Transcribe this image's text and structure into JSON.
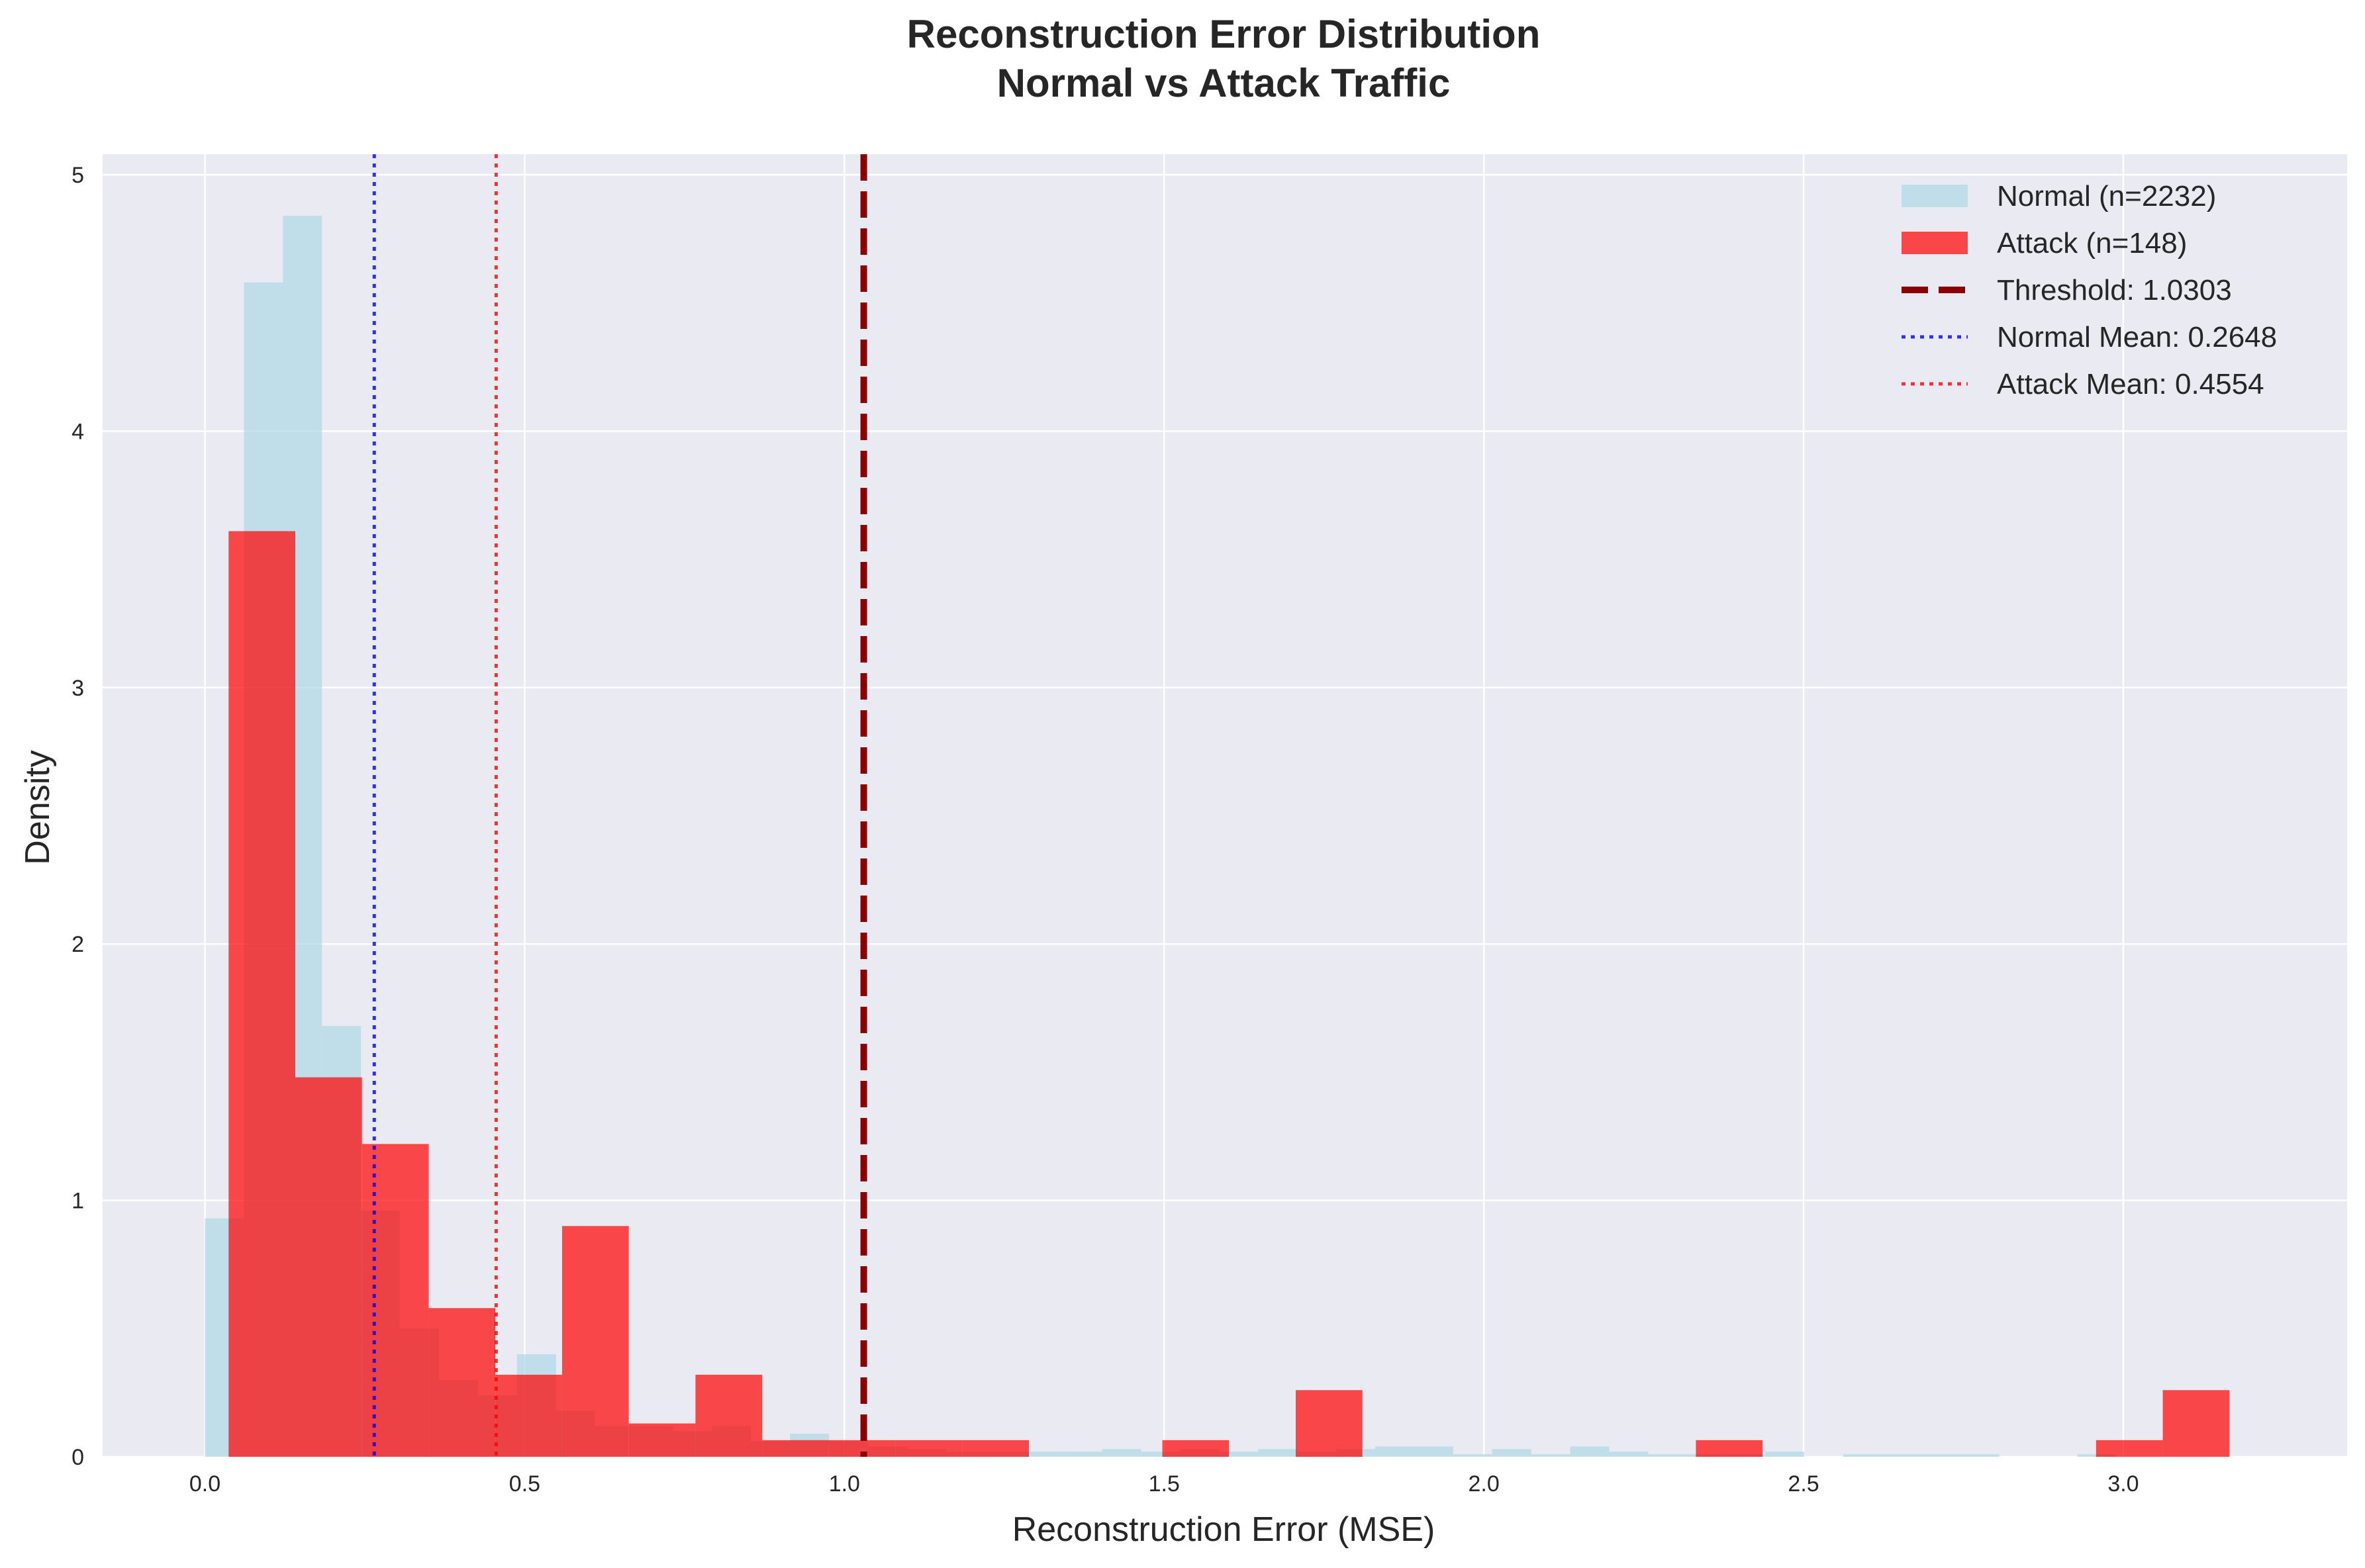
{
  "chart_data": {
    "type": "histogram",
    "title": [
      "Reconstruction Error Distribution",
      "Normal vs Attack Traffic"
    ],
    "xlabel": "Reconstruction Error (MSE)",
    "ylabel": "Density",
    "xlim": [
      -0.16,
      3.35
    ],
    "ylim": [
      0,
      5.08
    ],
    "xticks": [
      0.0,
      0.5,
      1.0,
      1.5,
      2.0,
      2.5,
      3.0
    ],
    "xtick_labels": [
      "0.0",
      "0.5",
      "1.0",
      "1.5",
      "2.0",
      "2.5",
      "3.0"
    ],
    "yticks": [
      0,
      1,
      2,
      3,
      4,
      5
    ],
    "ytick_labels": [
      "0",
      "1",
      "2",
      "3",
      "4",
      "5"
    ],
    "grid": true,
    "legend_position": "top-right",
    "series": [
      {
        "name": "Normal (n=2232)",
        "kind": "histogram",
        "color": "#add8e6",
        "opacity": 0.7,
        "bin_edges": [
          0.0,
          0.061,
          0.122,
          0.183,
          0.244,
          0.305,
          0.366,
          0.427,
          0.488,
          0.549,
          0.61,
          0.671,
          0.732,
          0.793,
          0.854,
          0.915,
          0.976,
          1.037,
          1.098,
          1.159,
          1.22,
          1.281,
          1.342,
          1.403,
          1.464,
          1.525,
          1.586,
          1.647,
          1.708,
          1.769,
          1.83,
          1.891,
          1.952,
          2.013,
          2.074,
          2.135,
          2.196,
          2.257,
          2.318,
          2.379,
          2.44,
          2.501,
          2.562,
          2.623,
          2.684,
          2.745,
          2.806,
          2.867,
          2.928,
          2.989
        ],
        "densities": [
          0.93,
          4.58,
          4.84,
          1.68,
          0.96,
          0.5,
          0.3,
          0.24,
          0.4,
          0.18,
          0.12,
          0.12,
          0.1,
          0.12,
          0.06,
          0.09,
          0.06,
          0.04,
          0.03,
          0.02,
          0.02,
          0.02,
          0.02,
          0.03,
          0.02,
          0.03,
          0.02,
          0.03,
          0.02,
          0.03,
          0.04,
          0.04,
          0.01,
          0.03,
          0.01,
          0.04,
          0.02,
          0.01,
          0.01,
          0.01,
          0.02,
          0.0,
          0.01,
          0.01,
          0.01,
          0.01,
          0.0,
          0.0,
          0.01
        ]
      },
      {
        "name": "Attack (n=148)",
        "kind": "histogram",
        "color": "#ff0000",
        "opacity": 0.7,
        "bin_edges": [
          0.037,
          0.1413,
          0.2456,
          0.3499,
          0.4542,
          0.5585,
          0.6628,
          0.7671,
          0.8714,
          0.9757,
          1.08,
          1.1843,
          1.2886,
          1.3929,
          1.4972,
          1.6015,
          1.7058,
          1.8101,
          1.9144,
          2.0187,
          2.123,
          2.2273,
          2.3316,
          2.4359,
          2.5402,
          2.6445,
          2.7488,
          2.8531,
          2.9574,
          3.0617,
          3.166
        ],
        "densities": [
          3.61,
          1.48,
          1.22,
          0.58,
          0.32,
          0.9,
          0.13,
          0.32,
          0.065,
          0.065,
          0.065,
          0.065,
          0.0,
          0.0,
          0.065,
          0.0,
          0.26,
          0.0,
          0.0,
          0.0,
          0.0,
          0.0,
          0.065,
          0.0,
          0.0,
          0.0,
          0.0,
          0.0,
          0.065,
          0.26
        ]
      }
    ],
    "vertical_lines": [
      {
        "name": "Threshold: 1.0303",
        "x": 1.0303,
        "color": "#8b0000",
        "style": "dashed"
      },
      {
        "name": "Normal Mean: 0.2648",
        "x": 0.2648,
        "color": "#0000ff",
        "style": "dotted"
      },
      {
        "name": "Attack Mean: 0.4554",
        "x": 0.4554,
        "color": "#ff0000",
        "style": "dotted"
      }
    ],
    "colors": {
      "plot_background": "#eaeaf2",
      "grid": "#ffffff",
      "figure_background": "#ffffff"
    }
  }
}
